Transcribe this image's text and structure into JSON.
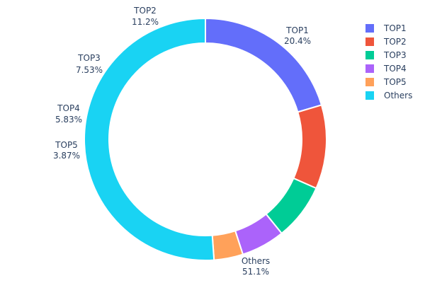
{
  "chart_data": {
    "type": "pie",
    "hole": true,
    "categories": [
      "TOP1",
      "TOP2",
      "TOP3",
      "TOP4",
      "TOP5",
      "Others"
    ],
    "values": [
      20.4,
      11.2,
      7.53,
      5.83,
      3.87,
      51.1
    ],
    "value_labels": [
      "20.4%",
      "11.2%",
      "7.53%",
      "5.83%",
      "3.87%",
      "51.1%"
    ],
    "colors": [
      "#636efa",
      "#EF553B",
      "#00cc96",
      "#ab63fa",
      "#FFA15A",
      "#19d3f3"
    ],
    "legend_position": "top-right"
  }
}
